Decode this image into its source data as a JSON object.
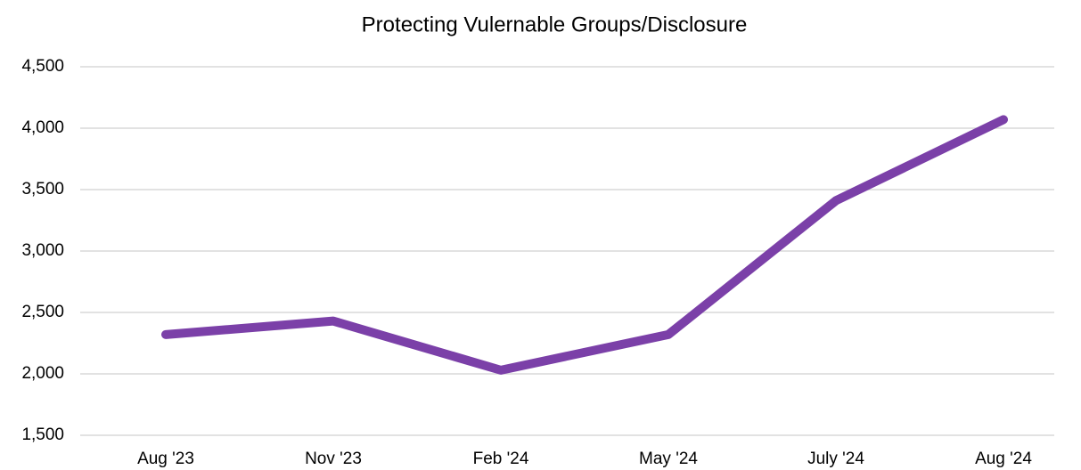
{
  "chart_data": {
    "type": "line",
    "title": "Protecting Vulernable Groups/Disclosure",
    "categories": [
      "Aug '23",
      "Nov '23",
      "Feb '24",
      "May '24",
      "July '24",
      "Aug '24"
    ],
    "series": [
      {
        "name": "Protecting Vulernable Groups/Disclosure",
        "color": "#7b40a8",
        "values": [
          2320,
          2430,
          2030,
          2320,
          3410,
          4070
        ]
      }
    ],
    "ylim": [
      1500,
      4500
    ],
    "yticks": [
      {
        "value": 1500,
        "label": "1,500"
      },
      {
        "value": 2000,
        "label": "2,000"
      },
      {
        "value": 2500,
        "label": "2,500"
      },
      {
        "value": 3000,
        "label": "3,000"
      },
      {
        "value": 3500,
        "label": "3,500"
      },
      {
        "value": 4000,
        "label": "4,000"
      },
      {
        "value": 4500,
        "label": "4,500"
      }
    ],
    "grid": true
  }
}
